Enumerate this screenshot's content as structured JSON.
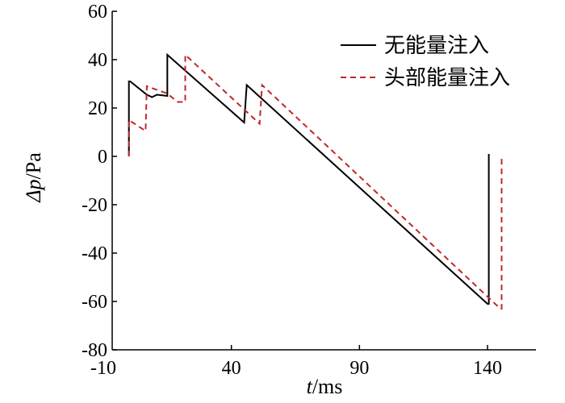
{
  "chart_data": {
    "type": "line",
    "xlabel": {
      "var": "t",
      "unit": "/ms"
    },
    "ylabel": {
      "var": "Δp",
      "unit": "/Pa"
    },
    "xlim": [
      -10,
      155
    ],
    "ylim": [
      -80,
      60
    ],
    "xticks": [
      -10,
      40,
      90,
      140
    ],
    "yticks": [
      60,
      40,
      20,
      0,
      -20,
      -40,
      -60,
      -80
    ],
    "grid": false,
    "legend_position": "top-right",
    "series": [
      {
        "name": "无能量注入",
        "color": "#000000",
        "dash": "solid",
        "x": [
          0,
          0,
          0.5,
          7,
          9,
          11,
          15,
          15,
          45,
          45,
          46,
          46,
          140,
          140.5,
          140.5
        ],
        "y": [
          0,
          31,
          31,
          25.5,
          24.5,
          25.5,
          25,
          42,
          14,
          14,
          29.5,
          29.5,
          -61,
          -61,
          1
        ]
      },
      {
        "name": "头部能量注入",
        "color": "#c0282b",
        "dash": "dashed",
        "x": [
          0,
          0,
          6.5,
          6.5,
          7,
          7,
          15,
          19,
          22,
          22,
          51,
          51,
          52,
          52,
          145,
          145.5,
          145.5
        ],
        "y": [
          0,
          15,
          10.5,
          10.5,
          29,
          29,
          26,
          22.5,
          22.5,
          42,
          13.5,
          13.5,
          29.5,
          29.5,
          -63,
          -63,
          0
        ]
      }
    ]
  }
}
